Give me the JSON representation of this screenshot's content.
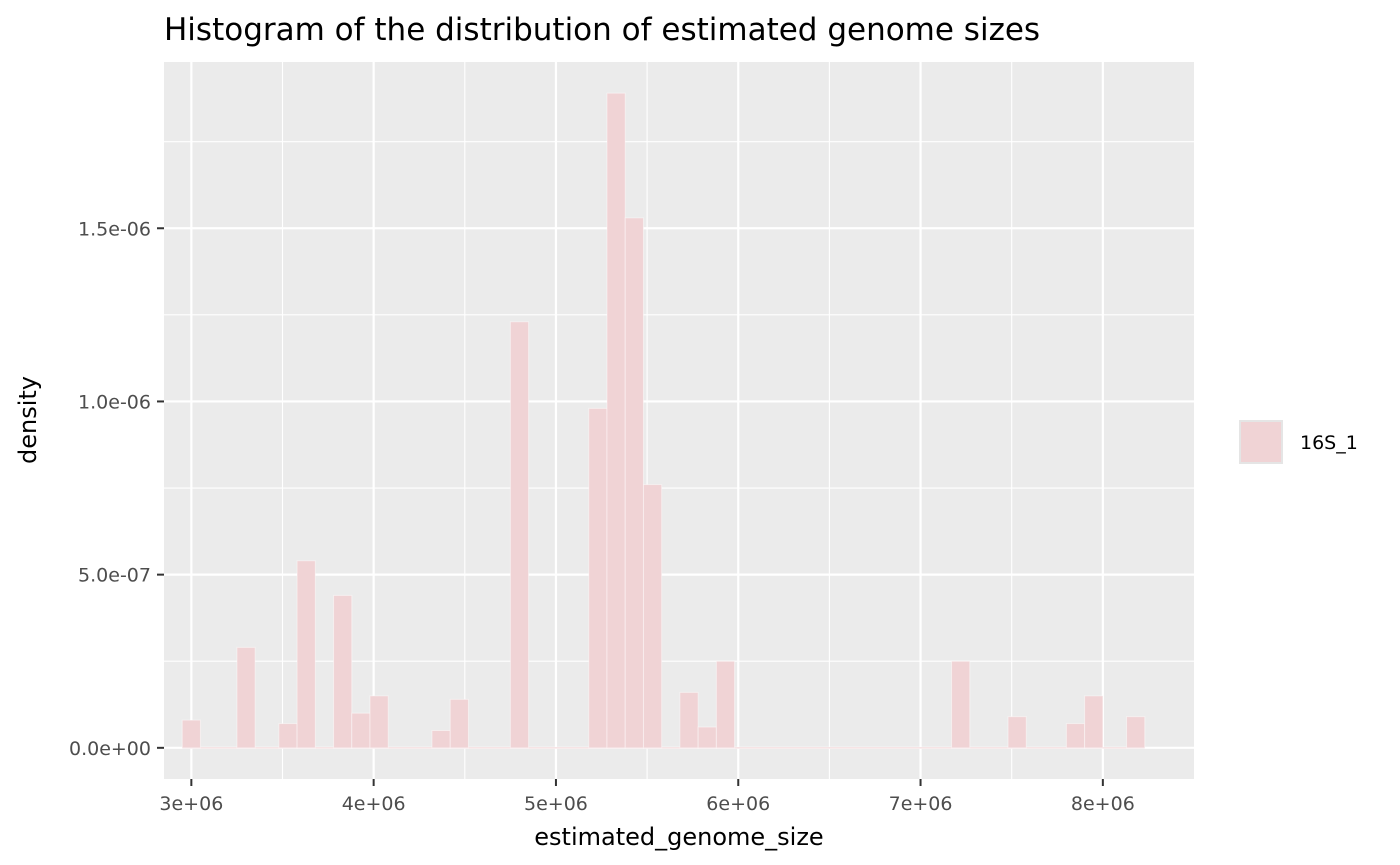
{
  "chart_data": {
    "type": "bar",
    "title": "Histogram of the distribution of estimated genome sizes",
    "xlabel": "estimated_genome_size",
    "ylabel": "density",
    "xlim": [
      2850000,
      8500000
    ],
    "ylim": [
      -9e-08,
      1.98e-06
    ],
    "bin_width": 100000,
    "x_ticks": [
      {
        "value": 3000000,
        "label": "3e+06"
      },
      {
        "value": 4000000,
        "label": "4e+06"
      },
      {
        "value": 5000000,
        "label": "5e+06"
      },
      {
        "value": 6000000,
        "label": "6e+06"
      },
      {
        "value": 7000000,
        "label": "7e+06"
      },
      {
        "value": 8000000,
        "label": "8e+06"
      }
    ],
    "y_ticks": [
      {
        "value": 0,
        "label": "0.0e+00"
      },
      {
        "value": 5e-07,
        "label": "5.0e-07"
      },
      {
        "value": 1e-06,
        "label": "1.0e-06"
      },
      {
        "value": 1.5e-06,
        "label": "1.5e-06"
      }
    ],
    "grid": true,
    "legend": {
      "position": "right",
      "entries": [
        "16S_1"
      ]
    },
    "series": [
      {
        "name": "16S_1",
        "color": "#F0D3D5",
        "bins": [
          {
            "x": 3000000,
            "value": 8e-08
          },
          {
            "x": 3300000,
            "value": 2.9e-07
          },
          {
            "x": 3530000,
            "value": 7e-08
          },
          {
            "x": 3630000,
            "value": 5.4e-07
          },
          {
            "x": 3830000,
            "value": 4.4e-07
          },
          {
            "x": 3930000,
            "value": 1e-07
          },
          {
            "x": 4030000,
            "value": 1.5e-07
          },
          {
            "x": 4370000,
            "value": 5e-08
          },
          {
            "x": 4470000,
            "value": 1.4e-07
          },
          {
            "x": 4800000,
            "value": 1.23e-06
          },
          {
            "x": 5230000,
            "value": 9.8e-07
          },
          {
            "x": 5330000,
            "value": 1.89e-06
          },
          {
            "x": 5430000,
            "value": 1.53e-06
          },
          {
            "x": 5530000,
            "value": 7.6e-07
          },
          {
            "x": 5730000,
            "value": 1.6e-07
          },
          {
            "x": 5830000,
            "value": 6e-08
          },
          {
            "x": 5930000,
            "value": 2.5e-07
          },
          {
            "x": 7220000,
            "value": 2.5e-07
          },
          {
            "x": 7530000,
            "value": 9e-08
          },
          {
            "x": 7850000,
            "value": 7e-08
          },
          {
            "x": 7950000,
            "value": 1.5e-07
          },
          {
            "x": 8180000,
            "value": 9e-08
          }
        ]
      }
    ]
  }
}
